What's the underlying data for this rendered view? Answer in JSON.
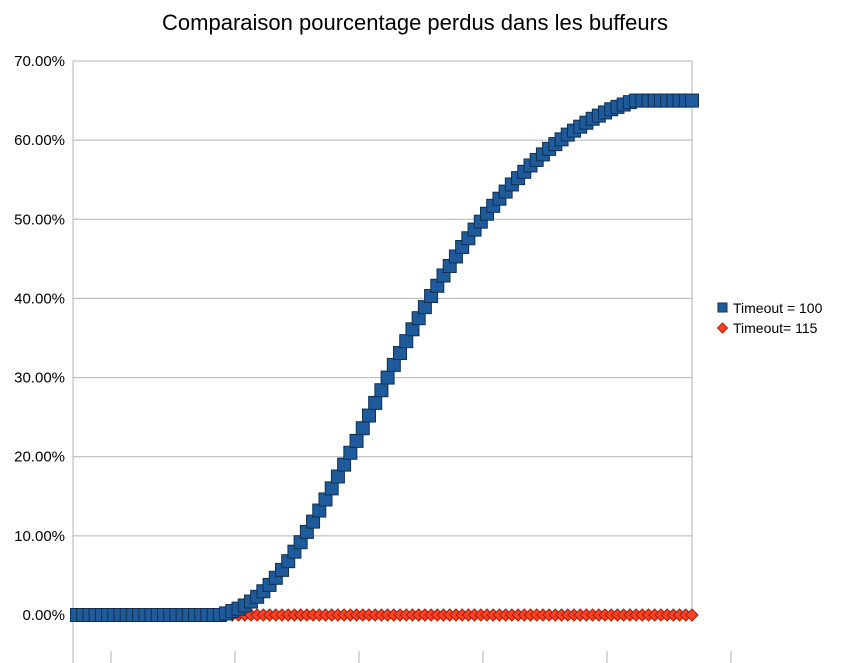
{
  "chart_data": {
    "type": "scatter",
    "title": "Comparaison pourcentage perdus dans les buffeurs",
    "xlabel": "",
    "ylabel": "",
    "ylim": [
      0,
      0.7
    ],
    "y_ticks": [
      "0.00%",
      "10.00%",
      "20.00%",
      "30.00%",
      "40.00%",
      "50.00%",
      "60.00%",
      "70.00%"
    ],
    "x_ticks": [
      "",
      "",
      "",
      "",
      "",
      ""
    ],
    "grid": true,
    "legend_position": "right",
    "x": [
      1,
      2,
      3,
      4,
      5,
      6,
      7,
      8,
      9,
      10,
      11,
      12,
      13,
      14,
      15,
      16,
      17,
      18,
      19,
      20,
      21,
      22,
      23,
      24,
      25,
      26,
      27,
      28,
      29,
      30,
      31,
      32,
      33,
      34,
      35,
      36,
      37,
      38,
      39,
      40,
      41,
      42,
      43,
      44,
      45,
      46,
      47,
      48,
      49,
      50,
      51,
      52,
      53,
      54,
      55,
      56,
      57,
      58,
      59,
      60,
      61,
      62,
      63,
      64,
      65,
      66,
      67,
      68,
      69,
      70,
      71,
      72,
      73,
      74,
      75,
      76,
      77,
      78,
      79,
      80,
      81,
      82,
      83,
      84,
      85,
      86,
      87,
      88,
      89,
      90,
      91,
      92,
      93,
      94,
      95,
      96,
      97,
      98,
      99,
      100
    ],
    "series": [
      {
        "name": "Timeout = 100",
        "color": "#1f5b9a",
        "marker": "square",
        "values": [
          0,
          0,
          0,
          0,
          0,
          0,
          0,
          0,
          0,
          0,
          0,
          0,
          0,
          0,
          0,
          0,
          0,
          0,
          0,
          0,
          0,
          0,
          0,
          0,
          0.002,
          0.005,
          0.008,
          0.012,
          0.017,
          0.023,
          0.03,
          0.038,
          0.047,
          0.057,
          0.068,
          0.08,
          0.092,
          0.105,
          0.118,
          0.132,
          0.146,
          0.16,
          0.175,
          0.19,
          0.205,
          0.22,
          0.236,
          0.252,
          0.268,
          0.284,
          0.3,
          0.316,
          0.331,
          0.346,
          0.361,
          0.375,
          0.389,
          0.403,
          0.416,
          0.429,
          0.441,
          0.453,
          0.465,
          0.476,
          0.487,
          0.497,
          0.507,
          0.517,
          0.526,
          0.535,
          0.544,
          0.552,
          0.56,
          0.568,
          0.575,
          0.582,
          0.589,
          0.595,
          0.601,
          0.607,
          0.612,
          0.617,
          0.622,
          0.627,
          0.631,
          0.635,
          0.639,
          0.642,
          0.645,
          0.648,
          0.65,
          0.65,
          0.65,
          0.65,
          0.65,
          0.65,
          0.65,
          0.65,
          0.65,
          0.65
        ]
      },
      {
        "name": "Timeout= 115",
        "color": "#ff4020",
        "marker": "diamond",
        "values": [
          0,
          0,
          0,
          0,
          0,
          0,
          0,
          0,
          0,
          0,
          0,
          0,
          0,
          0,
          0,
          0,
          0,
          0,
          0,
          0,
          0,
          0,
          0,
          0,
          0,
          0,
          0,
          0,
          0,
          0,
          0,
          0,
          0,
          0,
          0,
          0,
          0,
          0,
          0,
          0,
          0,
          0,
          0,
          0,
          0,
          0,
          0,
          0,
          0,
          0,
          0,
          0,
          0,
          0,
          0,
          0,
          0,
          0,
          0,
          0,
          0,
          0,
          0,
          0,
          0,
          0,
          0,
          0,
          0,
          0,
          0,
          0,
          0,
          0,
          0,
          0,
          0,
          0,
          0,
          0,
          0,
          0,
          0,
          0,
          0,
          0,
          0,
          0,
          0,
          0,
          0,
          0,
          0,
          0,
          0,
          0,
          0,
          0,
          0,
          0
        ]
      }
    ]
  }
}
